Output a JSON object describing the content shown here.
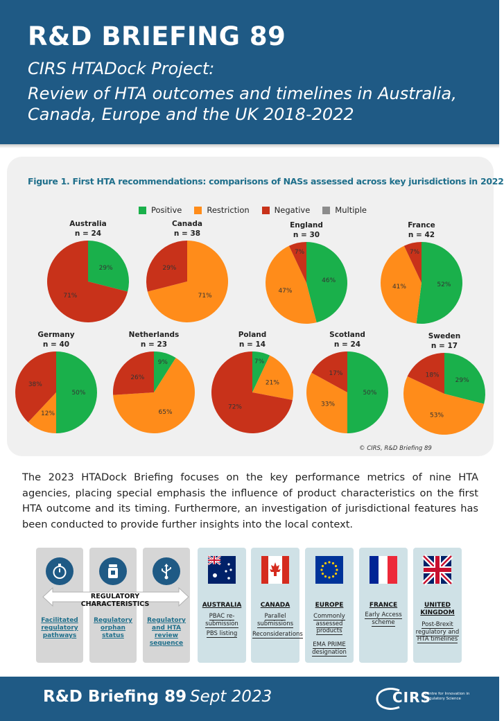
{
  "header": {
    "title": "R&D BRIEFING 89",
    "subtitle1": "CIRS HTADock Project:",
    "subtitle2": "Review of HTA outcomes and timelines in Australia, Canada, Europe and the UK 2018-2022"
  },
  "figure": {
    "caption": "Figure 1. First HTA recommendations: comparisons of NASs assessed across key jurisdictions in 2022",
    "copyright": "© CIRS, R&D Briefing 89"
  },
  "colors": {
    "Positive": "#1ab04b",
    "Restriction": "#ff8c1a",
    "Negative": "#c8321a",
    "Multiple": "#8c8c8c",
    "brand_blue": "#1f5a85"
  },
  "chart_data": {
    "type": "pie",
    "legend": [
      "Positive",
      "Restriction",
      "Negative",
      "Multiple"
    ],
    "pies": [
      {
        "country": "Australia",
        "n_label": "n = 24",
        "slices": [
          {
            "cat": "Positive",
            "value": 29,
            "label": "29%"
          },
          {
            "cat": "Negative",
            "value": 71,
            "label": "71%"
          }
        ]
      },
      {
        "country": "Canada",
        "n_label": "n = 38",
        "slices": [
          {
            "cat": "Restriction",
            "value": 71,
            "label": "71%"
          },
          {
            "cat": "Negative",
            "value": 29,
            "label": "29%"
          }
        ]
      },
      {
        "country": "England",
        "n_label": "n = 30",
        "slices": [
          {
            "cat": "Positive",
            "value": 46,
            "label": "46%"
          },
          {
            "cat": "Restriction",
            "value": 47,
            "label": "47%"
          },
          {
            "cat": "Negative",
            "value": 7,
            "label": "7%"
          }
        ]
      },
      {
        "country": "France",
        "n_label": "n = 42",
        "slices": [
          {
            "cat": "Positive",
            "value": 52,
            "label": "52%"
          },
          {
            "cat": "Restriction",
            "value": 41,
            "label": "41%"
          },
          {
            "cat": "Negative",
            "value": 7,
            "label": "7%"
          }
        ]
      },
      {
        "country": "Germany",
        "n_label": "n = 40",
        "slices": [
          {
            "cat": "Positive",
            "value": 50,
            "label": "50%"
          },
          {
            "cat": "Restriction",
            "value": 12,
            "label": "12%"
          },
          {
            "cat": "Negative",
            "value": 38,
            "label": "38%"
          }
        ]
      },
      {
        "country": "Netherlands",
        "n_label": "n = 23",
        "slices": [
          {
            "cat": "Positive",
            "value": 9,
            "label": "9%"
          },
          {
            "cat": "Restriction",
            "value": 65,
            "label": "65%"
          },
          {
            "cat": "Negative",
            "value": 26,
            "label": "26%"
          }
        ]
      },
      {
        "country": "Poland",
        "n_label": "n = 14",
        "slices": [
          {
            "cat": "Positive",
            "value": 7,
            "label": "7%"
          },
          {
            "cat": "Restriction",
            "value": 21,
            "label": "21%"
          },
          {
            "cat": "Negative",
            "value": 72,
            "label": "72%"
          }
        ]
      },
      {
        "country": "Scotland",
        "n_label": "n = 24",
        "slices": [
          {
            "cat": "Positive",
            "value": 50,
            "label": "50%"
          },
          {
            "cat": "Restriction",
            "value": 33,
            "label": "33%"
          },
          {
            "cat": "Negative",
            "value": 17,
            "label": "17%"
          }
        ]
      },
      {
        "country": "Sweden",
        "n_label": "n = 17",
        "slices": [
          {
            "cat": "Positive",
            "value": 29,
            "label": "29%"
          },
          {
            "cat": "Restriction",
            "value": 53,
            "label": "53%"
          },
          {
            "cat": "Negative",
            "value": 18,
            "label": "18%"
          }
        ]
      }
    ]
  },
  "body": {
    "paragraph": "The 2023 HTADock Briefing focuses on the key performance metrics of nine HTA agencies, placing special emphasis the influence of product characteristics on the first HTA outcome and its timing. Furthermore, an investigation of jurisdictional features has been conducted to provide further insights into the local context."
  },
  "regulatory": {
    "banner": "REGULATORY CHARACTERISTICS",
    "cards": [
      {
        "icon": "stopwatch-icon",
        "label": "Facilitated regulatory pathways"
      },
      {
        "icon": "medicine-bottle-icon",
        "label": "Regulatory orphan status"
      },
      {
        "icon": "usb-icon",
        "label": "Regulatory and HTA review sequence"
      }
    ]
  },
  "jurisdictions": [
    {
      "country": "AUSTRALIA",
      "flag": "australia-flag-icon",
      "details": [
        "PBAC re-submission",
        "PBS listing"
      ]
    },
    {
      "country": "CANADA",
      "flag": "canada-flag-icon",
      "details": [
        "Parallel submissions",
        "Reconsiderations"
      ]
    },
    {
      "country": "EUROPE",
      "flag": "eu-flag-icon",
      "details": [
        "Commonly assessed products",
        "EMA PRIME designation"
      ]
    },
    {
      "country": "FRANCE",
      "flag": "france-flag-icon",
      "details": [
        "Early Access scheme"
      ]
    },
    {
      "country": "UNITED KINGDOM",
      "flag": "uk-flag-icon",
      "details": [
        "Post-Brexit regulatory and HTA timelines"
      ]
    }
  ],
  "footer": {
    "title": "R&D Briefing 89",
    "date": "Sept 2023",
    "logo": "CIRS",
    "logo_sub": "Centre for Innovation in Regulatory Science"
  }
}
